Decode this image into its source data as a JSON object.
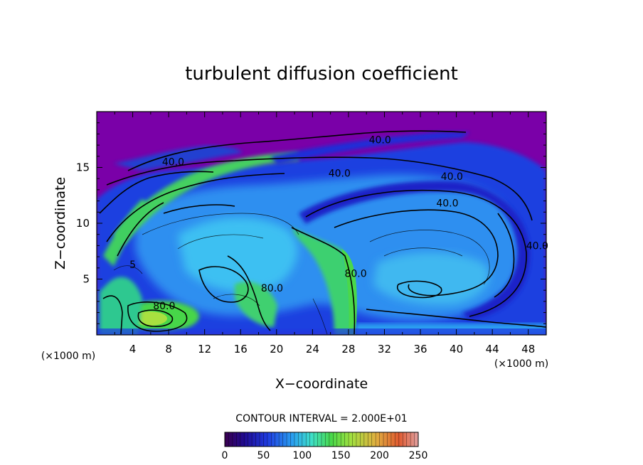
{
  "chart_data": {
    "type": "heatmap",
    "title": "turbulent diffusion coefficient",
    "xlabel": "X−coordinate",
    "ylabel": "Z−coordinate",
    "x_unit": "(×1000 m)",
    "y_unit": "(×1000 m)",
    "xlim": [
      0,
      50
    ],
    "ylim": [
      0,
      20
    ],
    "x_ticks": [
      4,
      8,
      12,
      16,
      20,
      24,
      28,
      32,
      36,
      40,
      44,
      48
    ],
    "y_ticks": [
      5,
      10,
      15
    ],
    "contour_interval_text": "CONTOUR INTERVAL = 2.000E+01",
    "contour_labels": [
      {
        "text": "40.0",
        "x": 8.5,
        "z": 15.5
      },
      {
        "text": "40.0",
        "x": 31.5,
        "z": 17.5
      },
      {
        "text": "40.0",
        "x": 27.0,
        "z": 14.5
      },
      {
        "text": "40.0",
        "x": 39.5,
        "z": 14.2
      },
      {
        "text": "40.0",
        "x": 39.0,
        "z": 11.8
      },
      {
        "text": "40.0",
        "x": 49.0,
        "z": 8.0
      },
      {
        "text": "80.0",
        "x": 19.5,
        "z": 4.2
      },
      {
        "text": "80.0",
        "x": 28.8,
        "z": 5.5
      },
      {
        "text": "80.0",
        "x": 7.5,
        "z": 2.6
      },
      {
        "text": "5",
        "x": 4.0,
        "z": 6.3
      }
    ],
    "colorbar": {
      "min": 0,
      "max": 250,
      "ticks": [
        0,
        50,
        100,
        150,
        200,
        250
      ],
      "colormap": [
        "#3a004f",
        "#1a0aa8",
        "#1f3be0",
        "#2a9ff0",
        "#3fe0c8",
        "#48d84a",
        "#a0e040",
        "#e0b040",
        "#e05a30",
        "#e0a0a0"
      ]
    },
    "colors": {
      "background_field": "#7a00a8",
      "low_values": "#1e2fd8",
      "mid_values": "#3aa6f0",
      "high_values": "#46d64a",
      "contour_line": "#000000"
    }
  }
}
